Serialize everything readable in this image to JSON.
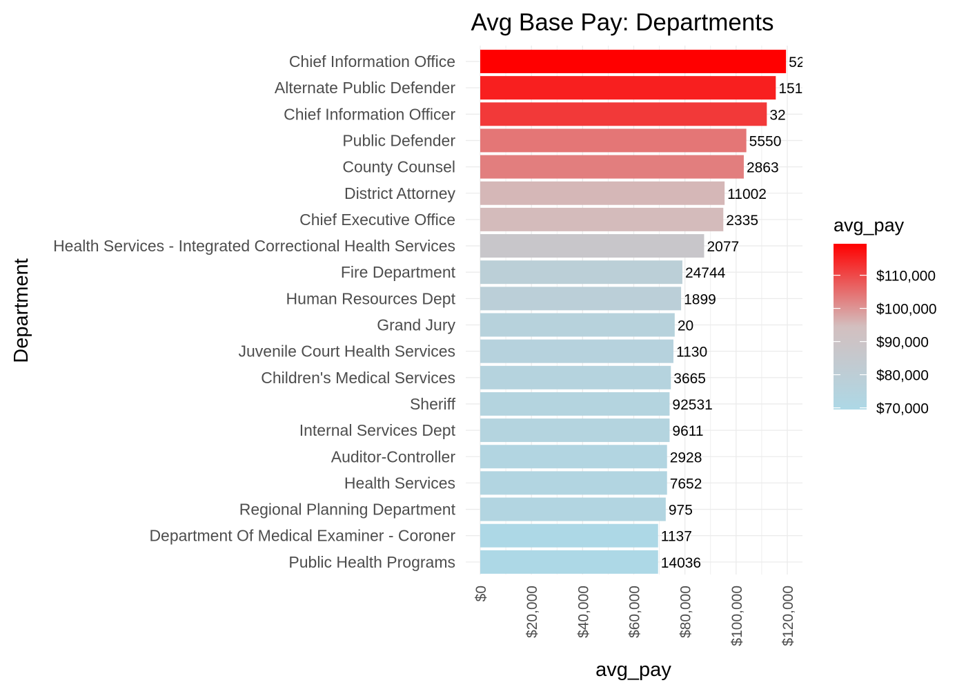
{
  "chart_data": {
    "type": "bar",
    "orientation": "horizontal",
    "title": "Avg Base Pay: Departments",
    "xlabel": "avg_pay",
    "ylabel": "Department",
    "xlim": [
      0,
      120000
    ],
    "x_ticks": [
      "$0",
      "$20,000",
      "$40,000",
      "$60,000",
      "$80,000",
      "$100,000",
      "$120,000"
    ],
    "grid": true,
    "categories": [
      "Chief Information Office",
      "Alternate Public Defender",
      "Chief Information Officer",
      "Public Defender",
      "County Counsel",
      "District Attorney",
      "Chief Executive Office",
      "Health Services - Integrated Correctional Health Services",
      "Fire Department",
      "Human Resources Dept",
      "Grand Jury",
      "Juvenile Court Health Services",
      "Children's Medical Services",
      "Sheriff",
      "Internal Services Dept",
      "Auditor-Controller",
      "Health Services",
      "Regional Planning Department",
      "Department Of Medical Examiner - Coroner",
      "Public Health Programs"
    ],
    "values": [
      119500,
      115500,
      112000,
      104000,
      103000,
      95500,
      95000,
      87500,
      79000,
      78500,
      76000,
      75500,
      74500,
      74000,
      74000,
      73000,
      73000,
      72500,
      69500,
      69500
    ],
    "data_labels": [
      "52",
      "151",
      "32",
      "5550",
      "2863",
      "11002",
      "2335",
      "2077",
      "24744",
      "1899",
      "20",
      "1130",
      "3665",
      "92531",
      "9611",
      "2928",
      "7652",
      "975",
      "1137",
      "14036"
    ],
    "legend": {
      "title": "avg_pay",
      "position": "right",
      "type": "gradient",
      "color_low": "#ADD8E6",
      "color_mid": "#D3BFBF",
      "color_high": "#FF0000",
      "domain": [
        69500,
        119500
      ],
      "tick_values": [
        70000,
        80000,
        90000,
        100000,
        110000
      ],
      "tick_labels": [
        "$70,000",
        "$80,000",
        "$90,000",
        "$100,000",
        "$110,000"
      ]
    }
  }
}
